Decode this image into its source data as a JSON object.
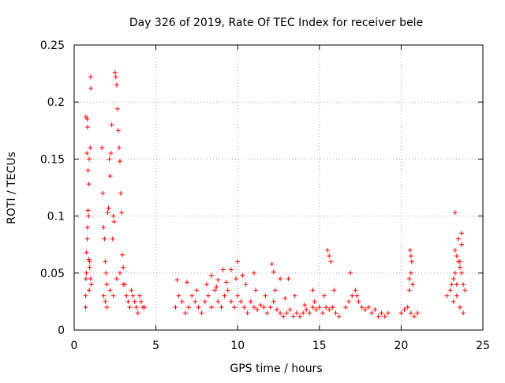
{
  "chart_data": {
    "type": "scatter",
    "title": "Day 326 of 2019, Rate Of TEC Index for receiver bele",
    "xlabel": "GPS time / hours",
    "ylabel": "ROTI / TECUs",
    "xlim": [
      0,
      25
    ],
    "ylim": [
      0,
      0.25
    ],
    "xticks": [
      0,
      5,
      10,
      15,
      20,
      25
    ],
    "yticks": [
      0,
      0.05,
      0.1,
      0.15,
      0.2,
      0.25
    ],
    "xtick_labels": [
      "0",
      "5",
      "10",
      "15",
      "20",
      "25"
    ],
    "ytick_labels": [
      "0",
      "0.05",
      "0.1",
      "0.15",
      "0.2",
      "0.25"
    ],
    "grid": true,
    "marker": "+",
    "color": "#ff0000",
    "series": [
      {
        "name": "ROTI",
        "x": [
          0.7,
          0.72,
          0.75,
          0.78,
          0.8,
          0.82,
          0.85,
          0.88,
          0.9,
          0.92,
          0.95,
          0.98,
          1.0,
          1.02,
          1.05,
          0.7,
          0.75,
          0.8,
          0.85,
          0.9,
          0.95,
          1.0,
          0.72,
          0.82,
          0.92,
          1.7,
          1.75,
          1.8,
          1.85,
          1.9,
          1.95,
          2.0,
          2.05,
          2.1,
          2.15,
          2.2,
          2.25,
          2.3,
          2.35,
          2.4,
          2.45,
          2.5,
          2.55,
          2.6,
          2.65,
          2.7,
          2.75,
          2.8,
          2.85,
          2.9,
          2.95,
          3.0,
          1.8,
          1.9,
          2.0,
          2.2,
          2.4,
          2.6,
          2.8,
          3.0,
          3.1,
          3.2,
          3.3,
          3.4,
          3.5,
          3.6,
          3.7,
          3.8,
          3.9,
          4.0,
          4.1,
          4.2,
          4.3,
          6.2,
          6.4,
          6.6,
          6.8,
          7.0,
          7.2,
          7.4,
          7.6,
          7.8,
          8.0,
          8.2,
          8.4,
          8.6,
          8.8,
          9.0,
          9.2,
          9.4,
          9.6,
          9.8,
          10.0,
          10.2,
          10.4,
          10.6,
          10.8,
          11.0,
          11.2,
          11.4,
          11.6,
          11.8,
          12.0,
          12.2,
          12.4,
          12.6,
          12.8,
          13.0,
          13.2,
          13.4,
          13.6,
          13.8,
          14.0,
          14.2,
          14.4,
          14.6,
          14.8,
          15.0,
          15.2,
          15.4,
          15.6,
          15.8,
          16.0,
          16.2,
          6.3,
          6.9,
          7.5,
          8.1,
          8.7,
          9.3,
          9.9,
          10.5,
          11.1,
          11.7,
          12.3,
          12.9,
          13.5,
          14.1,
          14.7,
          15.3,
          15.9,
          8.4,
          8.8,
          9.1,
          9.6,
          10.0,
          10.3,
          11.0,
          12.1,
          12.2,
          12.6,
          13.1,
          14.6,
          15.5,
          15.6,
          15.7,
          16.6,
          16.8,
          17.0,
          17.2,
          17.4,
          17.6,
          17.8,
          18.0,
          18.2,
          18.4,
          18.6,
          18.8,
          19.0,
          19.2,
          16.9,
          17.3,
          20.0,
          20.2,
          20.4,
          20.6,
          20.8,
          21.0,
          20.5,
          20.55,
          20.6,
          20.65,
          20.7,
          20.5,
          20.6,
          22.8,
          23.0,
          23.1,
          23.2,
          23.3,
          23.4,
          23.5,
          23.6,
          23.7,
          23.8,
          23.9,
          23.2,
          23.4,
          23.6,
          23.8,
          23.3,
          23.5,
          23.7,
          23.3,
          23.4,
          23.6,
          23.7
        ],
        "y": [
          0.02,
          0.045,
          0.068,
          0.155,
          0.185,
          0.178,
          0.14,
          0.1,
          0.062,
          0.035,
          0.06,
          0.16,
          0.222,
          0.212,
          0.04,
          0.03,
          0.05,
          0.08,
          0.105,
          0.128,
          0.055,
          0.045,
          0.187,
          0.09,
          0.15,
          0.16,
          0.12,
          0.09,
          0.08,
          0.06,
          0.05,
          0.04,
          0.103,
          0.107,
          0.15,
          0.135,
          0.155,
          0.18,
          0.08,
          0.1,
          0.095,
          0.226,
          0.222,
          0.215,
          0.194,
          0.175,
          0.16,
          0.148,
          0.12,
          0.103,
          0.066,
          0.04,
          0.03,
          0.025,
          0.02,
          0.035,
          0.03,
          0.045,
          0.05,
          0.055,
          0.04,
          0.03,
          0.025,
          0.02,
          0.035,
          0.03,
          0.025,
          0.02,
          0.015,
          0.03,
          0.025,
          0.02,
          0.02,
          0.02,
          0.03,
          0.025,
          0.015,
          0.02,
          0.03,
          0.025,
          0.02,
          0.015,
          0.025,
          0.03,
          0.02,
          0.035,
          0.025,
          0.02,
          0.03,
          0.035,
          0.025,
          0.02,
          0.03,
          0.025,
          0.02,
          0.015,
          0.025,
          0.02,
          0.018,
          0.022,
          0.02,
          0.015,
          0.02,
          0.025,
          0.018,
          0.015,
          0.012,
          0.015,
          0.018,
          0.012,
          0.015,
          0.012,
          0.015,
          0.018,
          0.015,
          0.02,
          0.018,
          0.02,
          0.015,
          0.02,
          0.018,
          0.02,
          0.015,
          0.012,
          0.044,
          0.042,
          0.035,
          0.04,
          0.038,
          0.042,
          0.045,
          0.04,
          0.035,
          0.03,
          0.035,
          0.028,
          0.03,
          0.022,
          0.025,
          0.03,
          0.035,
          0.048,
          0.044,
          0.053,
          0.053,
          0.06,
          0.048,
          0.05,
          0.058,
          0.051,
          0.045,
          0.045,
          0.035,
          0.07,
          0.065,
          0.06,
          0.02,
          0.025,
          0.03,
          0.035,
          0.025,
          0.02,
          0.018,
          0.02,
          0.015,
          0.018,
          0.012,
          0.015,
          0.012,
          0.015,
          0.05,
          0.03,
          0.015,
          0.018,
          0.02,
          0.015,
          0.012,
          0.015,
          0.045,
          0.07,
          0.065,
          0.06,
          0.04,
          0.035,
          0.05,
          0.03,
          0.035,
          0.04,
          0.045,
          0.05,
          0.04,
          0.06,
          0.055,
          0.05,
          0.04,
          0.035,
          0.025,
          0.03,
          0.02,
          0.015,
          0.103,
          0.08,
          0.085,
          0.07,
          0.065,
          0.06,
          0.075
        ]
      }
    ]
  }
}
